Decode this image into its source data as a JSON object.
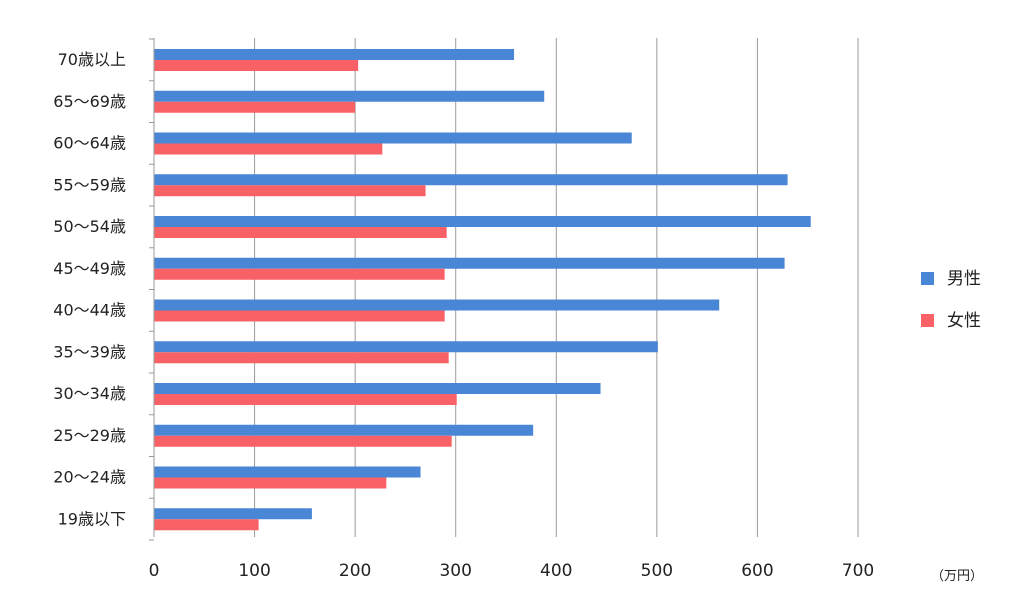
{
  "chart_data": {
    "type": "bar",
    "orientation": "horizontal",
    "categories": [
      "70歳以上",
      "65〜69歳",
      "60〜64歳",
      "55〜59歳",
      "50〜54歳",
      "45〜49歳",
      "40〜44歳",
      "35〜39歳",
      "30〜34歳",
      "25〜29歳",
      "20〜24歳",
      "19歳以下"
    ],
    "series": [
      {
        "name": "男性",
        "color": "#4a86d6",
        "values": [
          358,
          388,
          475,
          630,
          653,
          627,
          562,
          501,
          444,
          377,
          265,
          157
        ]
      },
      {
        "name": "女性",
        "color": "#f86166",
        "values": [
          203,
          200,
          227,
          270,
          291,
          289,
          289,
          293,
          301,
          296,
          231,
          104
        ]
      }
    ],
    "xticks": [
      "0",
      "100",
      "200",
      "300",
      "400",
      "500",
      "600",
      "700"
    ],
    "xlim": [
      0,
      700
    ],
    "unit_label": "（万円）",
    "grid": true,
    "legend_position": "right"
  }
}
